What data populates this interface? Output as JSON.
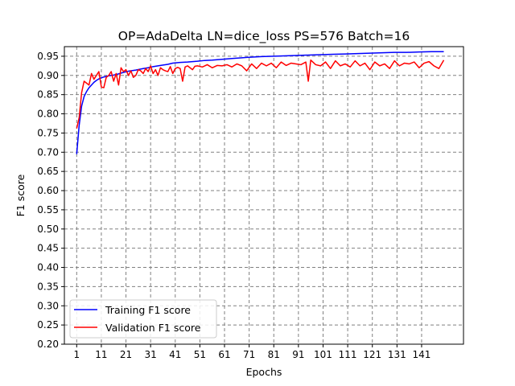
{
  "chart_data": {
    "type": "line",
    "title": "OP=AdaDelta LN=dice_loss PS=576 Batch=16",
    "xlabel": "Epochs",
    "ylabel": "F1 score",
    "xlim": [
      -4,
      158
    ],
    "ylim": [
      0.2,
      0.975
    ],
    "x_ticks": [
      1,
      11,
      21,
      31,
      41,
      51,
      61,
      71,
      81,
      91,
      101,
      111,
      121,
      131,
      141
    ],
    "y_ticks": [
      0.2,
      0.25,
      0.3,
      0.35,
      0.4,
      0.45,
      0.5,
      0.55,
      0.6,
      0.65,
      0.7,
      0.75,
      0.8,
      0.85,
      0.9,
      0.95
    ],
    "grid": true,
    "legend_position": "lower-left",
    "series": [
      {
        "name": "Training F1 score",
        "color": "#0000ff",
        "x": [
          1,
          2,
          3,
          4,
          5,
          6,
          7,
          8,
          9,
          10,
          12,
          14,
          16,
          18,
          20,
          22,
          25,
          28,
          30,
          32,
          35,
          38,
          40,
          43,
          46,
          48,
          50,
          53,
          56,
          60,
          64,
          68,
          70,
          73,
          76,
          80,
          85,
          90,
          95,
          100,
          105,
          110,
          115,
          120,
          125,
          130,
          135,
          140,
          145,
          150
        ],
        "y": [
          0.695,
          0.77,
          0.82,
          0.845,
          0.858,
          0.868,
          0.875,
          0.882,
          0.887,
          0.891,
          0.896,
          0.899,
          0.901,
          0.904,
          0.908,
          0.911,
          0.914,
          0.918,
          0.92,
          0.923,
          0.926,
          0.929,
          0.932,
          0.934,
          0.935,
          0.936,
          0.937,
          0.939,
          0.94,
          0.942,
          0.944,
          0.946,
          0.947,
          0.948,
          0.949,
          0.95,
          0.951,
          0.952,
          0.953,
          0.954,
          0.955,
          0.956,
          0.957,
          0.958,
          0.959,
          0.96,
          0.96,
          0.961,
          0.962,
          0.962
        ]
      },
      {
        "name": "Validation F1 score",
        "color": "#ff0000",
        "x": [
          1,
          2,
          3,
          4,
          5,
          6,
          7,
          8,
          9,
          10,
          11,
          12,
          13,
          14,
          15,
          16,
          17,
          18,
          19,
          20,
          21,
          22,
          23,
          24,
          25,
          26,
          27,
          28,
          29,
          30,
          31,
          32,
          33,
          34,
          35,
          36,
          37,
          38,
          39,
          40,
          41,
          42,
          43,
          44,
          45,
          46,
          47,
          48,
          49,
          50,
          52,
          54,
          56,
          58,
          60,
          62,
          64,
          66,
          68,
          70,
          72,
          74,
          76,
          78,
          80,
          82,
          84,
          86,
          88,
          90,
          92,
          94,
          95,
          96,
          98,
          100,
          102,
          104,
          106,
          108,
          110,
          112,
          114,
          116,
          118,
          120,
          122,
          124,
          126,
          128,
          130,
          132,
          134,
          136,
          138,
          140,
          142,
          144,
          146,
          148,
          150
        ],
        "y": [
          0.762,
          0.79,
          0.855,
          0.885,
          0.88,
          0.875,
          0.905,
          0.89,
          0.9,
          0.91,
          0.87,
          0.868,
          0.895,
          0.9,
          0.91,
          0.885,
          0.905,
          0.875,
          0.92,
          0.91,
          0.915,
          0.9,
          0.912,
          0.895,
          0.9,
          0.915,
          0.912,
          0.905,
          0.918,
          0.91,
          0.925,
          0.905,
          0.915,
          0.9,
          0.92,
          0.915,
          0.912,
          0.91,
          0.923,
          0.905,
          0.918,
          0.921,
          0.918,
          0.885,
          0.922,
          0.925,
          0.92,
          0.915,
          0.924,
          0.925,
          0.922,
          0.928,
          0.92,
          0.926,
          0.925,
          0.928,
          0.922,
          0.93,
          0.925,
          0.912,
          0.93,
          0.918,
          0.932,
          0.925,
          0.932,
          0.92,
          0.935,
          0.926,
          0.932,
          0.93,
          0.928,
          0.935,
          0.885,
          0.94,
          0.928,
          0.925,
          0.935,
          0.918,
          0.938,
          0.925,
          0.93,
          0.922,
          0.938,
          0.925,
          0.932,
          0.915,
          0.935,
          0.925,
          0.93,
          0.918,
          0.938,
          0.925,
          0.932,
          0.93,
          0.935,
          0.92,
          0.932,
          0.936,
          0.925,
          0.918,
          0.94
        ]
      }
    ]
  }
}
